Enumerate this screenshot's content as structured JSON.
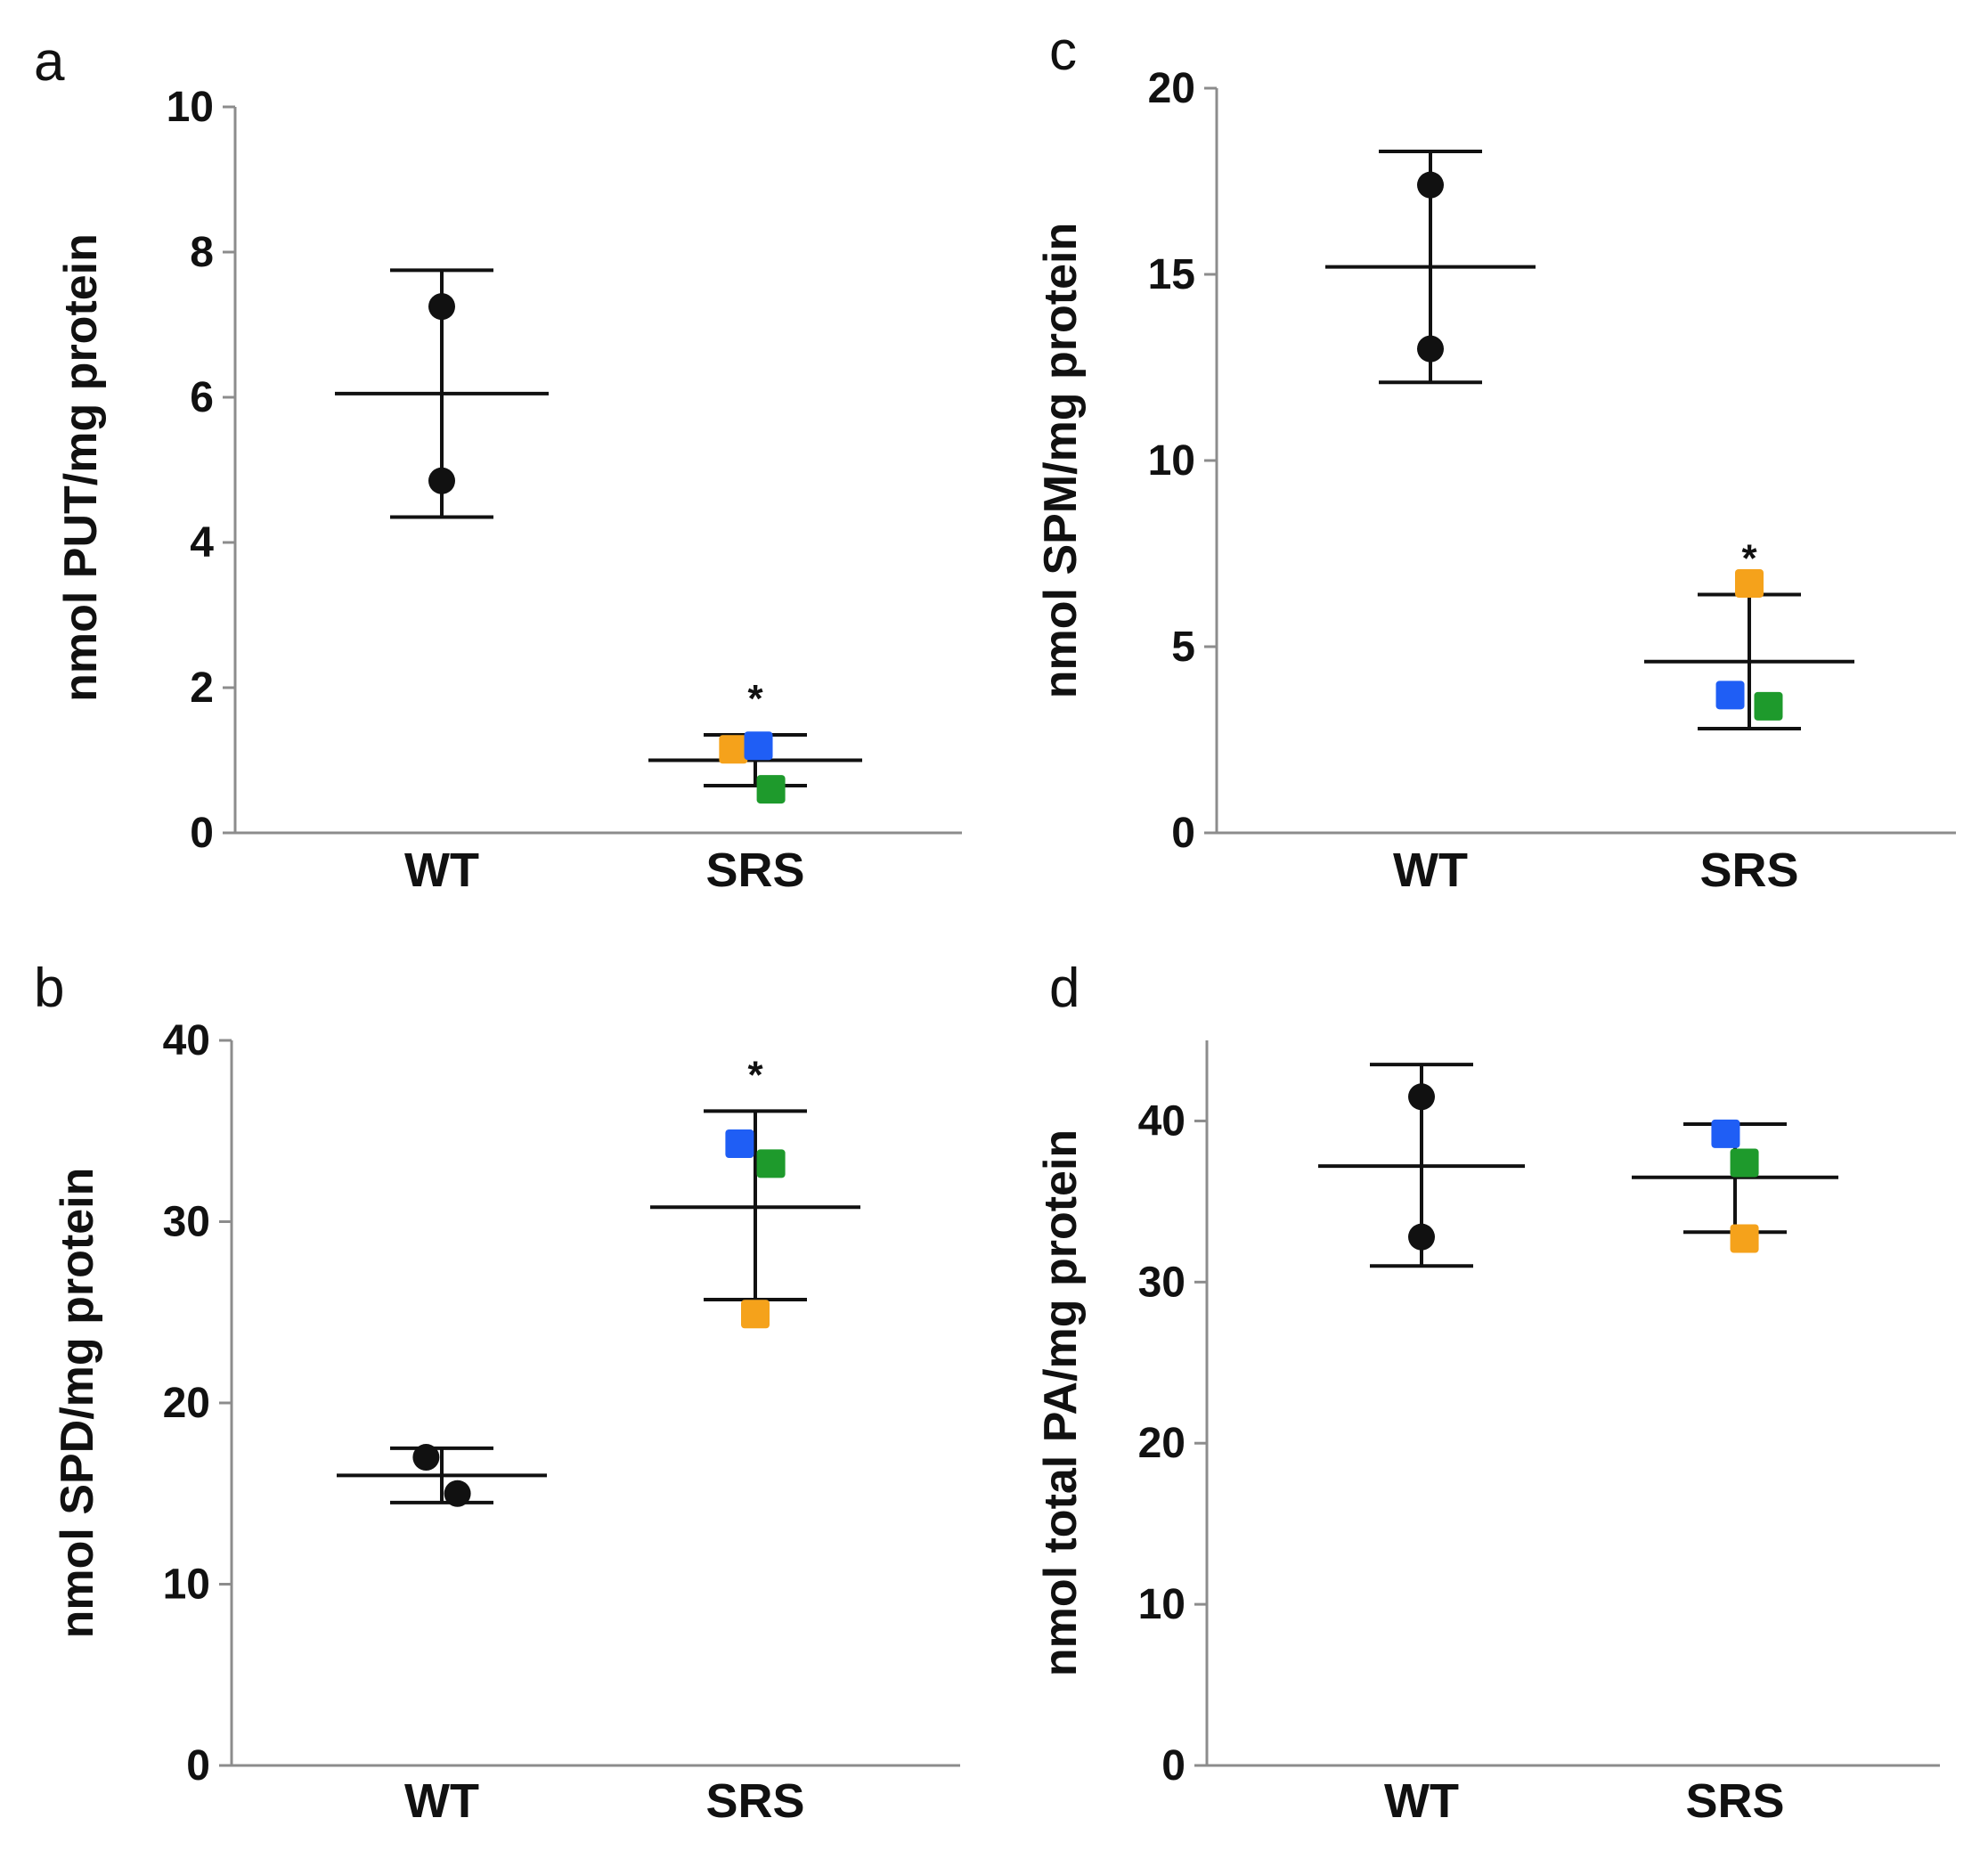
{
  "figure": {
    "background": "#ffffff"
  },
  "colors": {
    "axis": "#8c8c8c",
    "black": "#111111",
    "orange": "#f5a21b",
    "blue": "#1f5ef5",
    "green": "#1e9a2c"
  },
  "chart_data": [
    {
      "panel": "a",
      "type": "scatter",
      "ylabel": "nmol PUT/mg protein",
      "ylim": [
        0,
        10
      ],
      "yticks": [
        0,
        2,
        4,
        6,
        8,
        10
      ],
      "categories": [
        "WT",
        "SRS"
      ],
      "groups": [
        {
          "name": "WT",
          "mean": 6.05,
          "upper": 7.75,
          "lower": 4.35,
          "points": [
            {
              "y": 7.25,
              "offset": 0,
              "color": "black",
              "shape": "circle"
            },
            {
              "y": 4.85,
              "offset": 0,
              "color": "black",
              "shape": "circle"
            }
          ]
        },
        {
          "name": "SRS",
          "mean": 1.0,
          "upper": 1.35,
          "lower": 0.65,
          "significance": "*",
          "points": [
            {
              "y": 1.15,
              "offset": -0.07,
              "color": "orange",
              "shape": "square"
            },
            {
              "y": 1.2,
              "offset": 0.01,
              "color": "blue",
              "shape": "square"
            },
            {
              "y": 0.6,
              "offset": 0.05,
              "color": "green",
              "shape": "square"
            }
          ]
        }
      ]
    },
    {
      "panel": "b",
      "type": "scatter",
      "ylabel": "nmol SPD/mg protein",
      "ylim": [
        0,
        40
      ],
      "yticks": [
        0,
        10,
        20,
        30,
        40
      ],
      "categories": [
        "WT",
        "SRS"
      ],
      "groups": [
        {
          "name": "WT",
          "mean": 16.0,
          "upper": 17.5,
          "lower": 14.5,
          "points": [
            {
              "y": 17.0,
              "offset": -0.05,
              "color": "black",
              "shape": "circle"
            },
            {
              "y": 15.0,
              "offset": 0.05,
              "color": "black",
              "shape": "circle"
            }
          ]
        },
        {
          "name": "SRS",
          "mean": 30.8,
          "upper": 36.1,
          "lower": 25.7,
          "significance": "*",
          "points": [
            {
              "y": 34.3,
              "offset": -0.05,
              "color": "blue",
              "shape": "square"
            },
            {
              "y": 33.2,
              "offset": 0.05,
              "color": "green",
              "shape": "square"
            },
            {
              "y": 24.9,
              "offset": 0,
              "color": "orange",
              "shape": "square"
            }
          ]
        }
      ]
    },
    {
      "panel": "c",
      "type": "scatter",
      "ylabel": "nmol SPM/mg protein",
      "ylim": [
        0,
        20
      ],
      "yticks": [
        0,
        5,
        10,
        15,
        20
      ],
      "categories": [
        "WT",
        "SRS"
      ],
      "groups": [
        {
          "name": "WT",
          "mean": 15.2,
          "upper": 18.3,
          "lower": 12.1,
          "points": [
            {
              "y": 17.4,
              "offset": 0,
              "color": "black",
              "shape": "circle"
            },
            {
              "y": 13.0,
              "offset": 0,
              "color": "black",
              "shape": "circle"
            }
          ]
        },
        {
          "name": "SRS",
          "mean": 4.6,
          "upper": 6.4,
          "lower": 2.8,
          "significance": "*",
          "points": [
            {
              "y": 6.7,
              "offset": 0,
              "color": "orange",
              "shape": "square"
            },
            {
              "y": 3.7,
              "offset": -0.06,
              "color": "blue",
              "shape": "square"
            },
            {
              "y": 3.4,
              "offset": 0.06,
              "color": "green",
              "shape": "square"
            }
          ]
        }
      ]
    },
    {
      "panel": "d",
      "type": "scatter",
      "ylabel": "nmol total PA/mg protein",
      "ylim": [
        0,
        45
      ],
      "yticks": [
        0,
        10,
        20,
        30,
        40
      ],
      "categories": [
        "WT",
        "SRS"
      ],
      "groups": [
        {
          "name": "WT",
          "mean": 37.2,
          "upper": 43.5,
          "lower": 31.0,
          "points": [
            {
              "y": 41.5,
              "offset": 0,
              "color": "black",
              "shape": "circle"
            },
            {
              "y": 32.8,
              "offset": 0,
              "color": "black",
              "shape": "circle"
            }
          ]
        },
        {
          "name": "SRS",
          "mean": 36.5,
          "upper": 39.8,
          "lower": 33.1,
          "points": [
            {
              "y": 39.2,
              "offset": -0.03,
              "color": "blue",
              "shape": "square"
            },
            {
              "y": 37.4,
              "offset": 0.03,
              "color": "green",
              "shape": "square"
            },
            {
              "y": 32.7,
              "offset": 0.03,
              "color": "orange",
              "shape": "square"
            }
          ]
        }
      ]
    }
  ]
}
